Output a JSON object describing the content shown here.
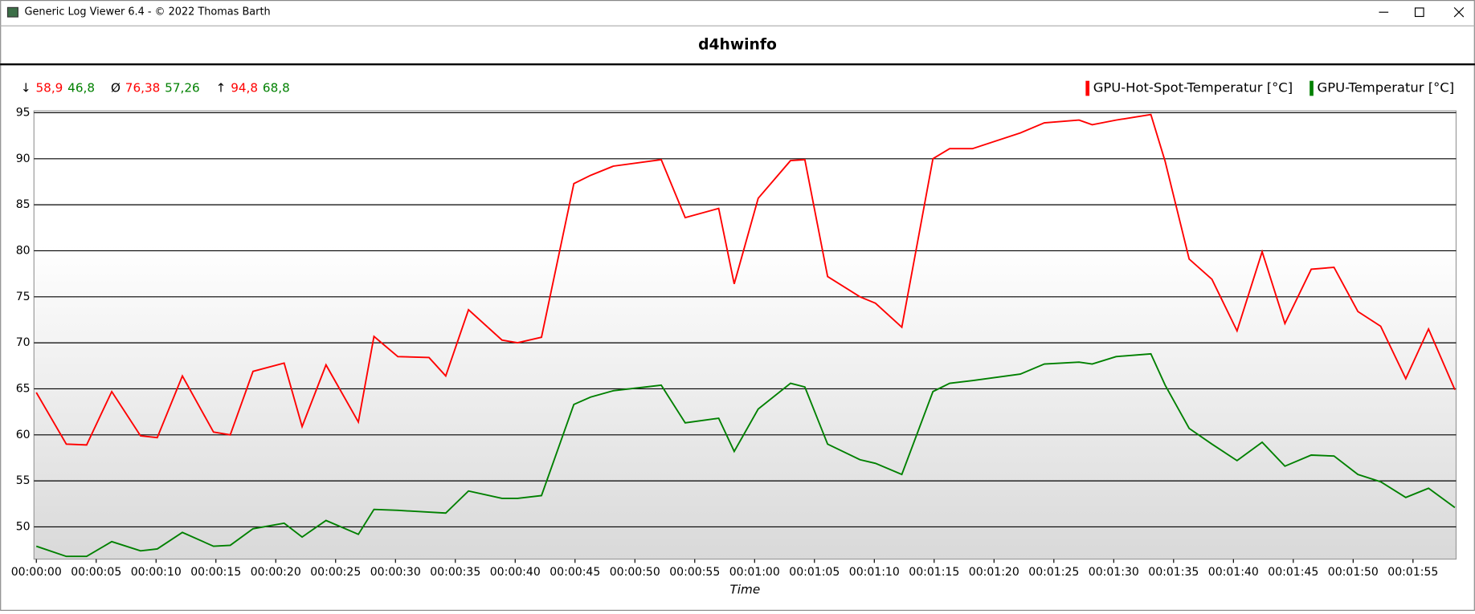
{
  "window": {
    "title": "Generic Log Viewer 6.4 - © 2022 Thomas Barth"
  },
  "stats": [
    {
      "symbol": "↓",
      "values": [
        "58,9",
        "46,8"
      ]
    },
    {
      "symbol": "Ø",
      "values": [
        "76,38",
        "57,26"
      ]
    },
    {
      "symbol": "↑",
      "values": [
        "94,8",
        "68,8"
      ]
    }
  ],
  "chart_data": {
    "type": "line",
    "title": "d4hwinfo",
    "xlabel": "Time",
    "grid": true,
    "legend": "top-right",
    "x": [
      0,
      2.5,
      4.2,
      6.3,
      8.7,
      10.1,
      12.2,
      14.8,
      16.2,
      18.1,
      20.7,
      22.2,
      24.2,
      26.9,
      28.2,
      30.2,
      32.8,
      34.2,
      36.1,
      38.9,
      40.2,
      42.2,
      44.9,
      46.3,
      48.2,
      52.2,
      54.2,
      57.0,
      58.3,
      60.3,
      63.0,
      64.2,
      66.1,
      68.8,
      70.1,
      72.3,
      74.9,
      76.3,
      78.2,
      82.2,
      84.2,
      87.1,
      88.2,
      90.2,
      93.1,
      94.3,
      96.3,
      98.2,
      100.3,
      102.4,
      104.3,
      106.5,
      108.4,
      110.4,
      112.3,
      114.4,
      116.3,
      118.5
    ],
    "series": [
      {
        "name": "GPU-Hot-Spot-Temperatur [°C]",
        "color": "#ff0000",
        "values": [
          64.6,
          59.0,
          58.9,
          64.7,
          59.9,
          59.7,
          66.4,
          60.3,
          60.0,
          66.9,
          67.8,
          60.9,
          67.6,
          61.4,
          70.7,
          68.5,
          68.4,
          66.4,
          73.6,
          70.3,
          70.0,
          70.6,
          87.3,
          88.2,
          89.2,
          89.9,
          83.6,
          84.6,
          76.4,
          85.7,
          89.8,
          89.9,
          77.2,
          75.0,
          74.3,
          71.7,
          90.0,
          91.1,
          91.1,
          92.8,
          93.9,
          94.2,
          93.7,
          94.2,
          94.8,
          89.7,
          79.1,
          76.9,
          71.3,
          79.9,
          72.1,
          78.0,
          78.2,
          73.4,
          71.8,
          66.1,
          71.5,
          64.9
        ]
      },
      {
        "name": "GPU-Temperatur [°C]",
        "color": "#008000",
        "values": [
          47.9,
          46.8,
          46.8,
          48.4,
          47.4,
          47.6,
          49.4,
          47.9,
          48.0,
          49.8,
          50.4,
          48.9,
          50.7,
          49.2,
          51.9,
          51.8,
          51.6,
          51.5,
          53.9,
          53.1,
          53.1,
          53.4,
          63.3,
          64.1,
          64.8,
          65.4,
          61.3,
          61.8,
          58.2,
          62.8,
          65.6,
          65.2,
          59.0,
          57.3,
          56.9,
          55.7,
          64.7,
          65.6,
          65.9,
          66.6,
          67.7,
          67.9,
          67.7,
          68.5,
          68.8,
          65.4,
          60.7,
          59.0,
          57.2,
          59.2,
          56.6,
          57.8,
          57.7,
          55.7,
          54.9,
          53.2,
          54.2,
          52.1
        ]
      }
    ],
    "xlim": [
      -0.2,
      118.6
    ],
    "ylim": [
      46.5,
      95.2
    ],
    "yticks": [
      50,
      55,
      60,
      65,
      70,
      75,
      80,
      85,
      90,
      95
    ],
    "xticks": [
      {
        "value": 0,
        "label": "00:00:00"
      },
      {
        "value": 5,
        "label": "00:00:05"
      },
      {
        "value": 10,
        "label": "00:00:10"
      },
      {
        "value": 15,
        "label": "00:00:15"
      },
      {
        "value": 20,
        "label": "00:00:20"
      },
      {
        "value": 25,
        "label": "00:00:25"
      },
      {
        "value": 30,
        "label": "00:00:30"
      },
      {
        "value": 35,
        "label": "00:00:35"
      },
      {
        "value": 40,
        "label": "00:00:40"
      },
      {
        "value": 45,
        "label": "00:00:45"
      },
      {
        "value": 50,
        "label": "00:00:50"
      },
      {
        "value": 55,
        "label": "00:00:55"
      },
      {
        "value": 60,
        "label": "00:01:00"
      },
      {
        "value": 65,
        "label": "00:01:05"
      },
      {
        "value": 70,
        "label": "00:01:10"
      },
      {
        "value": 75,
        "label": "00:01:15"
      },
      {
        "value": 80,
        "label": "00:01:20"
      },
      {
        "value": 85,
        "label": "00:01:25"
      },
      {
        "value": 90,
        "label": "00:01:30"
      },
      {
        "value": 95,
        "label": "00:01:35"
      },
      {
        "value": 100,
        "label": "00:01:40"
      },
      {
        "value": 105,
        "label": "00:01:45"
      },
      {
        "value": 110,
        "label": "00:01:50"
      },
      {
        "value": 115,
        "label": "00:01:55"
      }
    ]
  }
}
